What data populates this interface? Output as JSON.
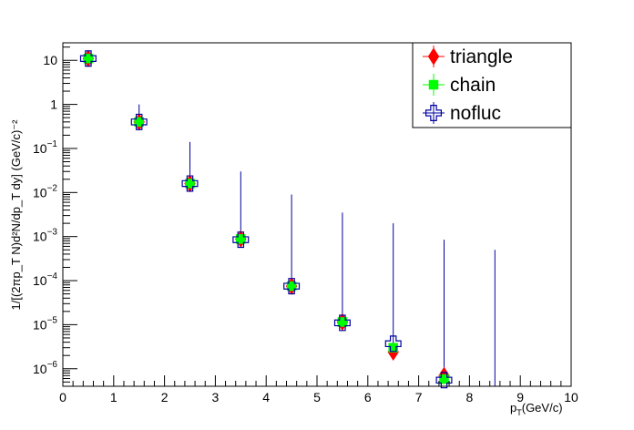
{
  "chart_data": {
    "type": "scatter",
    "x_axis": {
      "label_main": "p",
      "label_sub": "T",
      "label_unit": "(GeV/c)",
      "range": [
        0,
        10
      ],
      "major_ticks": [
        0,
        1,
        2,
        3,
        4,
        5,
        6,
        7,
        8,
        9,
        10
      ],
      "tick_labels": [
        "0",
        "1",
        "2",
        "3",
        "4",
        "5",
        "6",
        "7",
        "8",
        "9",
        "10"
      ]
    },
    "y_axis": {
      "label": "1/[(2πp_T N)d²N/dp_T dy] (GeV/c)⁻²",
      "scale": "log",
      "range": [
        4e-07,
        25
      ],
      "major_ticks": [
        1e-06,
        1e-05,
        0.0001,
        0.001,
        0.01,
        0.1,
        1,
        10
      ],
      "tick_labels": [
        {
          "base": "10",
          "exp": "−6"
        },
        {
          "base": "10",
          "exp": "−5"
        },
        {
          "base": "10",
          "exp": "−4"
        },
        {
          "base": "10",
          "exp": "−3"
        },
        {
          "base": "10",
          "exp": "−2"
        },
        {
          "base": "10",
          "exp": "−1"
        },
        {
          "base": "1",
          "exp": ""
        },
        {
          "base": "10",
          "exp": ""
        }
      ]
    },
    "legend": {
      "position": "top-right",
      "entries": [
        "triangle",
        "chain",
        "nofluc"
      ]
    },
    "series": [
      {
        "name": "triangle",
        "color": "#ff0000",
        "marker": "diamond",
        "x": [
          0.5,
          1.5,
          2.5,
          3.5,
          4.5,
          5.5,
          6.5,
          7.5
        ],
        "y": [
          11,
          0.4,
          0.016,
          0.00088,
          7.5e-05,
          1.15e-05,
          2.4e-06,
          7e-07
        ]
      },
      {
        "name": "chain",
        "color": "#00ff00",
        "marker": "square",
        "x": [
          0.5,
          1.5,
          2.5,
          3.5,
          4.5,
          5.5,
          6.5,
          7.5
        ],
        "y": [
          11,
          0.4,
          0.016,
          0.00088,
          7.5e-05,
          1.15e-05,
          3e-06,
          5.8e-07
        ]
      },
      {
        "name": "nofluc",
        "color": "#0000a0",
        "marker": "open-cross",
        "x": [
          0.5,
          1.5,
          2.5,
          3.5,
          4.5,
          5.5,
          6.5,
          7.5
        ],
        "y": [
          11,
          0.4,
          0.016,
          0.00085,
          7.5e-05,
          1.1e-05,
          3.7e-06,
          5.5e-07
        ],
        "error_upper": [
          14,
          1.0,
          0.14,
          0.03,
          0.009,
          0.0035,
          0.002,
          0.00085
        ]
      },
      {
        "name": "",
        "color": "#0000a0",
        "marker": "none",
        "x": [
          8.5
        ],
        "y": [
          3.5e-07
        ],
        "error_upper": [
          0.0005
        ]
      }
    ],
    "grid": false
  }
}
